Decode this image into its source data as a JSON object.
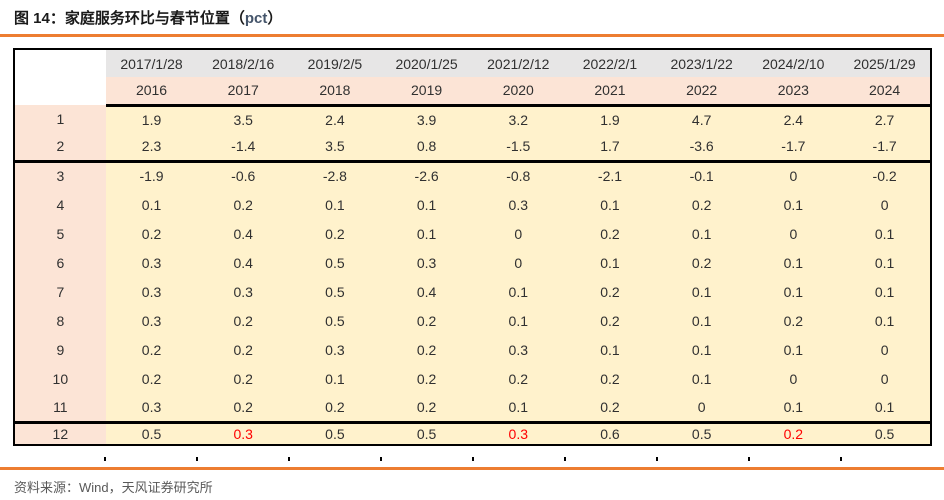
{
  "title": {
    "main": "图 14：家庭服务环比与春节位置（",
    "unit": "pct",
    "close": "）"
  },
  "table": {
    "corner_label": "",
    "date_header": [
      "2017/1/28",
      "2018/2/16",
      "2019/2/5",
      "2020/1/25",
      "2021/2/12",
      "2022/2/1",
      "2023/1/22",
      "2024/2/10",
      "2025/1/29"
    ],
    "year_header": [
      "2016",
      "2017",
      "2018",
      "2019",
      "2020",
      "2021",
      "2022",
      "2023",
      "2024"
    ],
    "rows": [
      {
        "label": "1",
        "values": [
          "1.9",
          "3.5",
          "2.4",
          "3.9",
          "3.2",
          "1.9",
          "4.7",
          "2.4",
          "2.7"
        ]
      },
      {
        "label": "2",
        "values": [
          "2.3",
          "-1.4",
          "3.5",
          "0.8",
          "-1.5",
          "1.7",
          "-3.6",
          "-1.7",
          "-1.7"
        ]
      },
      {
        "label": "3",
        "values": [
          "-1.9",
          "-0.6",
          "-2.8",
          "-2.6",
          "-0.8",
          "-2.1",
          "-0.1",
          "0",
          "-0.2"
        ]
      },
      {
        "label": "4",
        "values": [
          "0.1",
          "0.2",
          "0.1",
          "0.1",
          "0.3",
          "0.1",
          "0.2",
          "0.1",
          "0"
        ]
      },
      {
        "label": "5",
        "values": [
          "0.2",
          "0.4",
          "0.2",
          "0.1",
          "0",
          "0.2",
          "0.1",
          "0",
          "0.1"
        ]
      },
      {
        "label": "6",
        "values": [
          "0.3",
          "0.4",
          "0.5",
          "0.3",
          "0",
          "0.1",
          "0.2",
          "0.1",
          "0.1"
        ]
      },
      {
        "label": "7",
        "values": [
          "0.3",
          "0.3",
          "0.5",
          "0.4",
          "0.1",
          "0.2",
          "0.1",
          "0.1",
          "0.1"
        ]
      },
      {
        "label": "8",
        "values": [
          "0.3",
          "0.2",
          "0.5",
          "0.2",
          "0.1",
          "0.2",
          "0.1",
          "0.2",
          "0.1"
        ]
      },
      {
        "label": "9",
        "values": [
          "0.2",
          "0.2",
          "0.3",
          "0.2",
          "0.3",
          "0.1",
          "0.1",
          "0.1",
          "0"
        ]
      },
      {
        "label": "10",
        "values": [
          "0.2",
          "0.2",
          "0.1",
          "0.2",
          "0.2",
          "0.2",
          "0.1",
          "0",
          "0"
        ]
      },
      {
        "label": "11",
        "values": [
          "0.3",
          "0.2",
          "0.2",
          "0.2",
          "0.1",
          "0.2",
          "0",
          "0.1",
          "0.1"
        ]
      },
      {
        "label": "12",
        "values": [
          "0.5",
          "0.3",
          "0.5",
          "0.5",
          "0.3",
          "0.6",
          "0.5",
          "0.2",
          "0.5"
        ],
        "red_indices": [
          1,
          4,
          7
        ]
      }
    ],
    "group_breaks": [
      2,
      11
    ]
  },
  "source": "资料来源：Wind，天风证券研究所",
  "colors": {
    "accent_orange": "#ED7D31",
    "header_gray": "#E7E6E6",
    "label_peach": "#FCE4D6",
    "cell_yellow": "#FFF2CC",
    "highlight_red": "#FF0000",
    "source_gray": "#595959",
    "border_black": "#000000"
  }
}
